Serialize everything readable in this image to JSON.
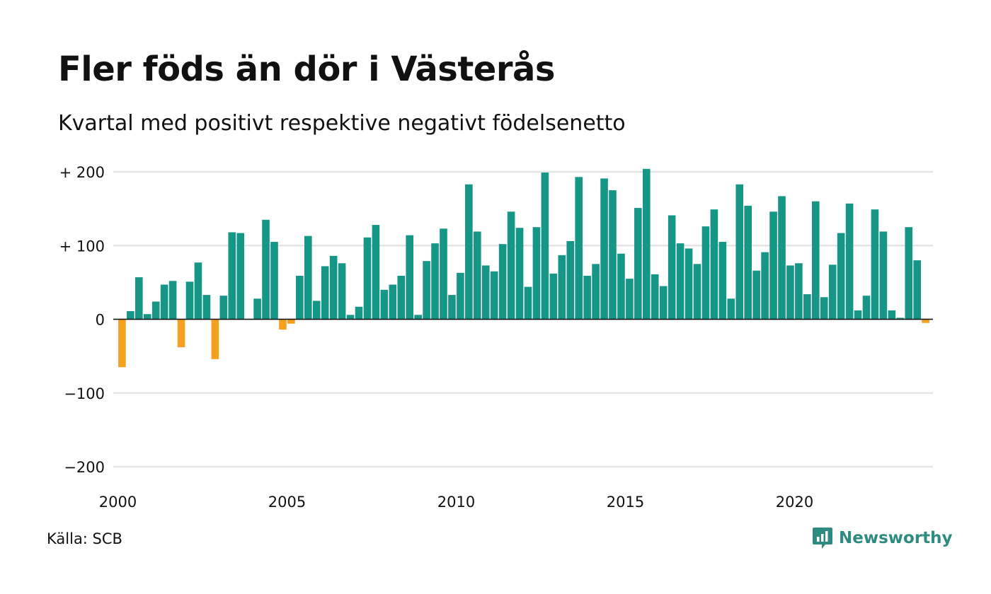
{
  "header": {
    "title": "Fler föds än dör i Västerås",
    "subtitle": "Kvartal med positivt respektive negativt födelsenetto"
  },
  "footer": {
    "source": "Källa: SCB",
    "brand": "Newsworthy"
  },
  "colors": {
    "positive": "#159686",
    "negative": "#f5a01f",
    "grid": "#e4e4e4",
    "brand": "#2e8b7f"
  },
  "chart_data": {
    "type": "bar",
    "title": "Fler föds än dör i Västerås",
    "subtitle": "Kvartal med positivt respektive negativt födelsenetto",
    "xlabel": "",
    "ylabel": "",
    "ylim": [
      -200,
      200
    ],
    "grid": true,
    "legend": "none",
    "x_ticks": [
      2000,
      2005,
      2010,
      2015,
      2020
    ],
    "y_ticks": [
      {
        "value": 200,
        "label": "+ 200"
      },
      {
        "value": 100,
        "label": "+ 100"
      },
      {
        "value": 0,
        "label": "0"
      },
      {
        "value": -100,
        "label": "−100"
      },
      {
        "value": -200,
        "label": "−200"
      }
    ],
    "categories": [
      "2000 K1",
      "2000 K2",
      "2000 K3",
      "2000 K4",
      "2001 K1",
      "2001 K2",
      "2001 K3",
      "2001 K4",
      "2002 K1",
      "2002 K2",
      "2002 K3",
      "2002 K4",
      "2003 K1",
      "2003 K2",
      "2003 K3",
      "2003 K4",
      "2004 K1",
      "2004 K2",
      "2004 K3",
      "2004 K4",
      "2005 K1",
      "2005 K2",
      "2005 K3",
      "2005 K4",
      "2006 K1",
      "2006 K2",
      "2006 K3",
      "2006 K4",
      "2007 K1",
      "2007 K2",
      "2007 K3",
      "2007 K4",
      "2008 K1",
      "2008 K2",
      "2008 K3",
      "2008 K4",
      "2009 K1",
      "2009 K2",
      "2009 K3",
      "2009 K4",
      "2010 K1",
      "2010 K2",
      "2010 K3",
      "2010 K4",
      "2011 K1",
      "2011 K2",
      "2011 K3",
      "2011 K4",
      "2012 K1",
      "2012 K2",
      "2012 K3",
      "2012 K4",
      "2013 K1",
      "2013 K2",
      "2013 K3",
      "2013 K4",
      "2014 K1",
      "2014 K2",
      "2014 K3",
      "2014 K4",
      "2015 K1",
      "2015 K2",
      "2015 K3",
      "2015 K4",
      "2016 K1",
      "2016 K2",
      "2016 K3",
      "2016 K4",
      "2017 K1",
      "2017 K2",
      "2017 K3",
      "2017 K4",
      "2018 K1",
      "2018 K2",
      "2018 K3",
      "2018 K4",
      "2019 K1",
      "2019 K2",
      "2019 K3",
      "2019 K4",
      "2020 K1",
      "2020 K2",
      "2020 K3",
      "2020 K4",
      "2021 K1",
      "2021 K2",
      "2021 K3",
      "2021 K4",
      "2022 K1",
      "2022 K2",
      "2022 K3",
      "2022 K4",
      "2023 K1",
      "2023 K2",
      "2023 K3",
      "2023 K4",
      "2024 K1"
    ],
    "values": [
      -65,
      11,
      57,
      7,
      24,
      47,
      52,
      -38,
      51,
      77,
      33,
      -54,
      32,
      118,
      117,
      0,
      28,
      135,
      105,
      -14,
      -6,
      59,
      113,
      25,
      72,
      86,
      76,
      6,
      17,
      111,
      128,
      40,
      47,
      59,
      114,
      6,
      79,
      103,
      123,
      33,
      63,
      183,
      119,
      73,
      65,
      102,
      146,
      124,
      44,
      125,
      199,
      62,
      87,
      106,
      193,
      59,
      75,
      191,
      175,
      89,
      55,
      151,
      204,
      61,
      45,
      141,
      103,
      96,
      75,
      126,
      149,
      105,
      28,
      183,
      154,
      66,
      91,
      146,
      167,
      73,
      76,
      34,
      160,
      30,
      74,
      117,
      157,
      12,
      32,
      149,
      119,
      12,
      2,
      125,
      80,
      -5,
      0
    ]
  }
}
